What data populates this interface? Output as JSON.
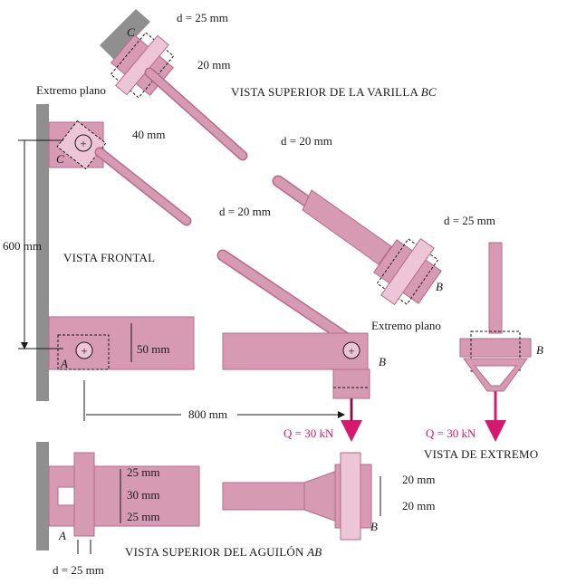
{
  "labels": {
    "d_c": "d = 25 mm",
    "dim_20_top": "20 mm",
    "extremo_plano_1": "Extremo plano",
    "vista_bc": "VISTA SUPERIOR DE LA VARILLA",
    "vista_bc_var": "BC",
    "dim_40": "40 mm",
    "d_bc_1": "d = 20 mm",
    "d_bc_2": "d = 20 mm",
    "d_b": "d = 25 mm",
    "pt_c1": "C",
    "pt_c2": "C",
    "pt_b1": "B",
    "dim_600": "600 mm",
    "vista_frontal": "VISTA FRONTAL",
    "extremo_plano_2": "Extremo plano",
    "dim_50": "50 mm",
    "pt_a1": "A",
    "pt_b2": "B",
    "pt_b3": "B",
    "dim_800": "800 mm",
    "q_1": "Q = 30 kN",
    "q_2": "Q = 30 kN",
    "vista_extremo": "VISTA DE EXTREMO",
    "dim_25a": "25 mm",
    "dim_30": "30 mm",
    "dim_25b": "25 mm",
    "dim_20a": "20 mm",
    "dim_20b": "20 mm",
    "pt_a2": "A",
    "pt_b4": "B",
    "vista_ab": "VISTA SUPERIOR DEL AGUILÓN",
    "vista_ab_var": "AB",
    "d_a": "d = 25 mm"
  },
  "colors": {
    "member": "#d79ab3",
    "member_dark": "#b56a8c",
    "member_light": "#ecc5d6",
    "wall": "#8f8f8f",
    "load": "#d6186e",
    "line": "#1a1a1a"
  }
}
